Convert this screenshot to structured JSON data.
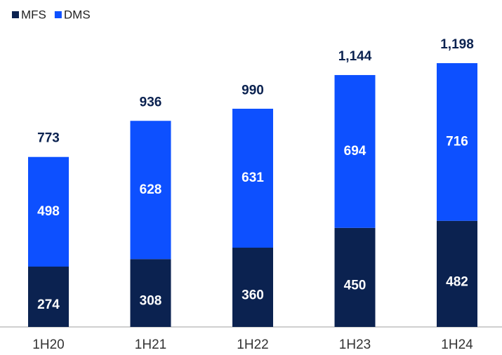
{
  "chart_data": {
    "type": "stacked-bar",
    "categories": [
      "1H20",
      "1H21",
      "1H22",
      "1H23",
      "1H24"
    ],
    "series": [
      {
        "name": "MFS",
        "color": "#0b2250",
        "values": [
          274,
          308,
          360,
          450,
          482
        ]
      },
      {
        "name": "DMS",
        "color": "#0d50ff",
        "values": [
          498,
          628,
          631,
          694,
          716
        ]
      }
    ],
    "totals": [
      773,
      936,
      990,
      1144,
      1198
    ],
    "total_labels": [
      "773",
      "936",
      "990",
      "1,144",
      "1,198"
    ],
    "ylim": [
      0,
      1300
    ],
    "legend": "top-left"
  }
}
